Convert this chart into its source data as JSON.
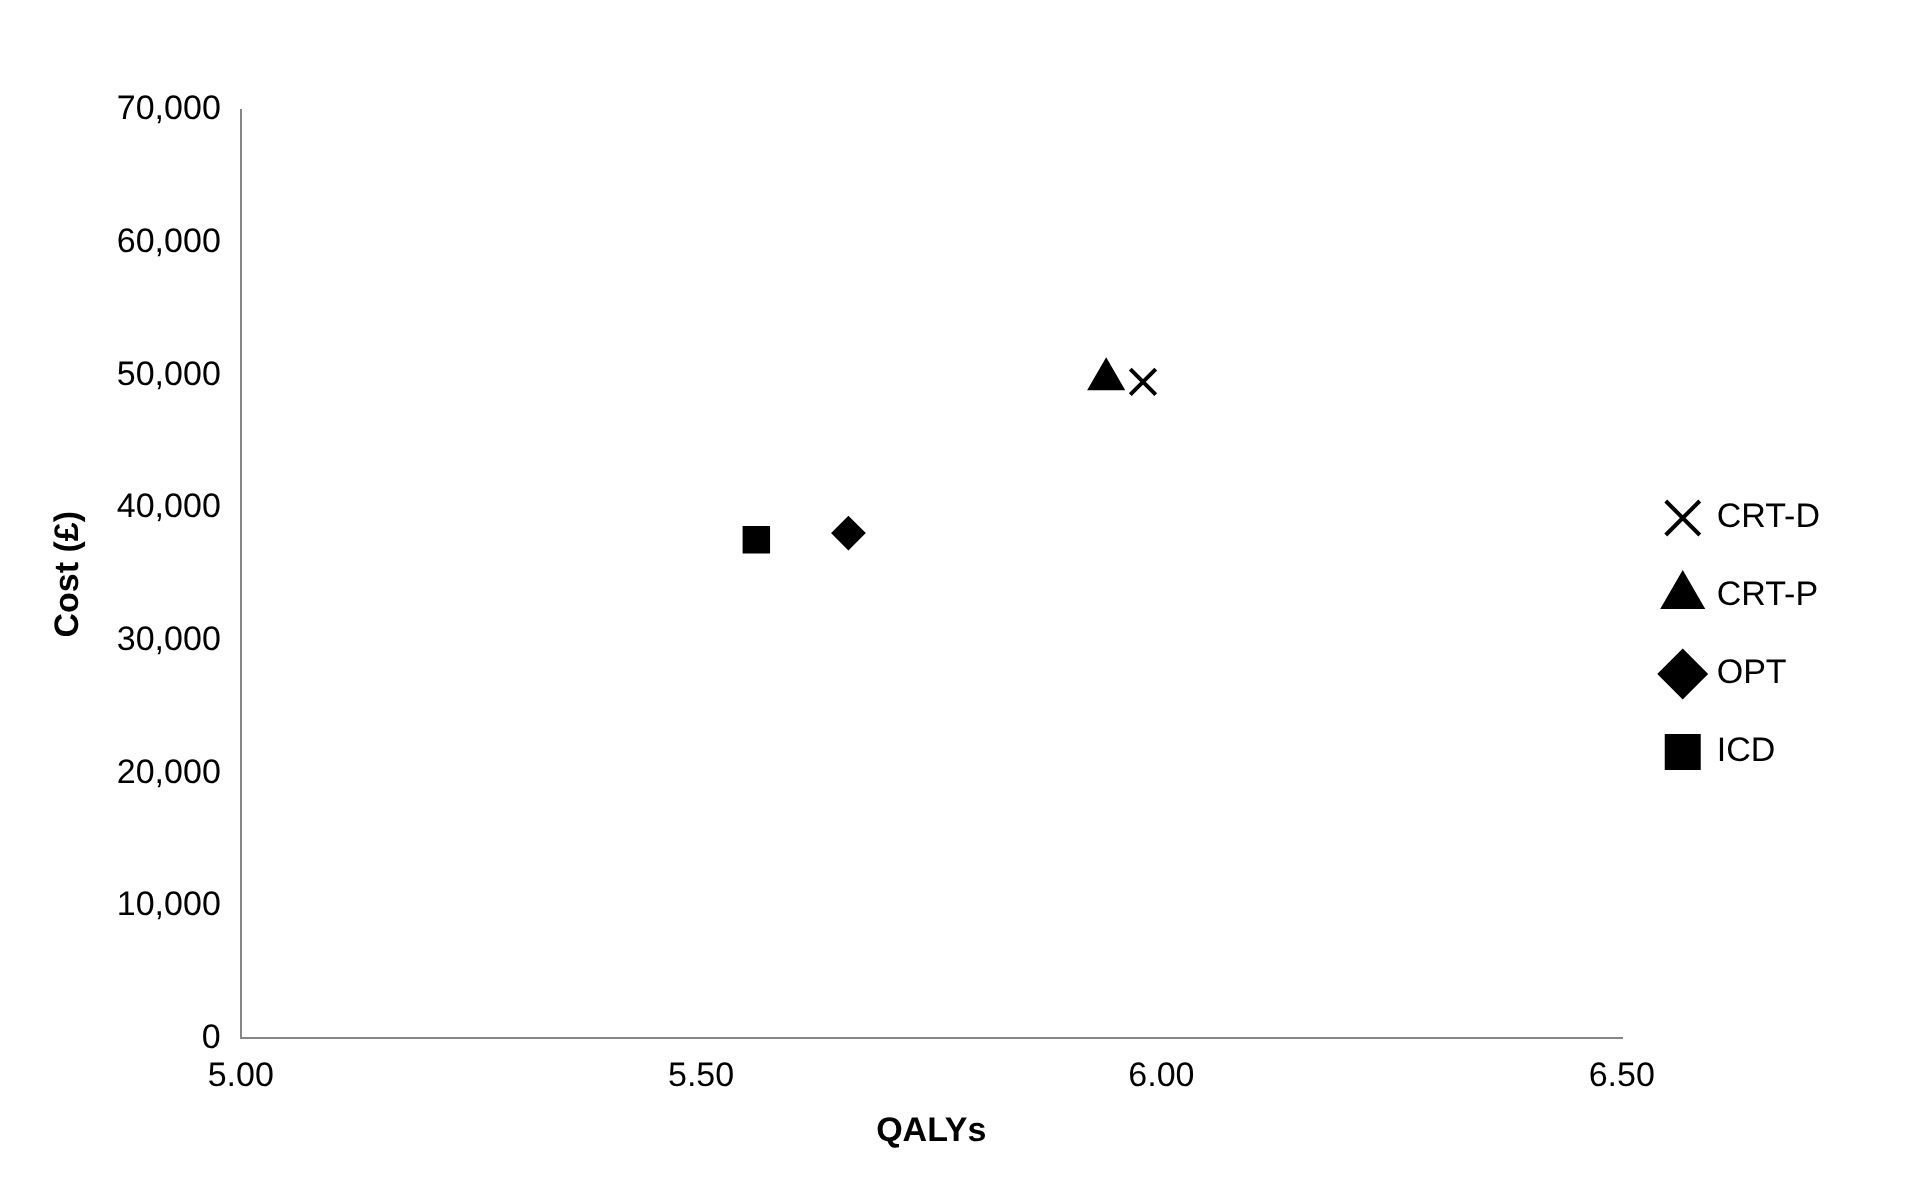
{
  "chart_data": {
    "type": "scatter",
    "xlabel": "QALYs",
    "ylabel": "Cost (£)",
    "xlim": [
      5,
      6.5
    ],
    "xticks": [
      {
        "value": 5,
        "label": "5.00"
      },
      {
        "value": 5.5,
        "label": "5.50"
      },
      {
        "value": 6,
        "label": "6.00"
      },
      {
        "value": 6.5,
        "label": "6.50"
      }
    ],
    "ylim": [
      0,
      70000
    ],
    "yticks": [
      0,
      {
        "value": 10000,
        "label": "10,000"
      },
      {
        "value": 20000,
        "label": "20,000"
      },
      {
        "value": 30000,
        "label": "30,000"
      },
      {
        "value": 40000,
        "label": "40,000"
      },
      {
        "value": 50000,
        "label": "50,000"
      },
      {
        "value": 60000,
        "label": "60,000"
      },
      {
        "value": 70000,
        "label": "70,000"
      }
    ],
    "grid": false,
    "legend": "right",
    "series": [
      {
        "name": "CRT-D",
        "color": "#000000",
        "marker": "cross",
        "x": [
          5.98
        ],
        "values": [
          49500
        ]
      },
      {
        "name": "CRT-P",
        "color": "#000000",
        "marker": "triangle",
        "x": [
          5.94
        ],
        "values": [
          49700
        ]
      },
      {
        "name": "OPT",
        "color": "#000000",
        "marker": "diamond",
        "x": [
          5.66
        ],
        "values": [
          38100
        ]
      },
      {
        "name": "ICD",
        "color": "#000000",
        "marker": "square",
        "x": [
          5.56
        ],
        "values": [
          37600
        ]
      }
    ]
  }
}
